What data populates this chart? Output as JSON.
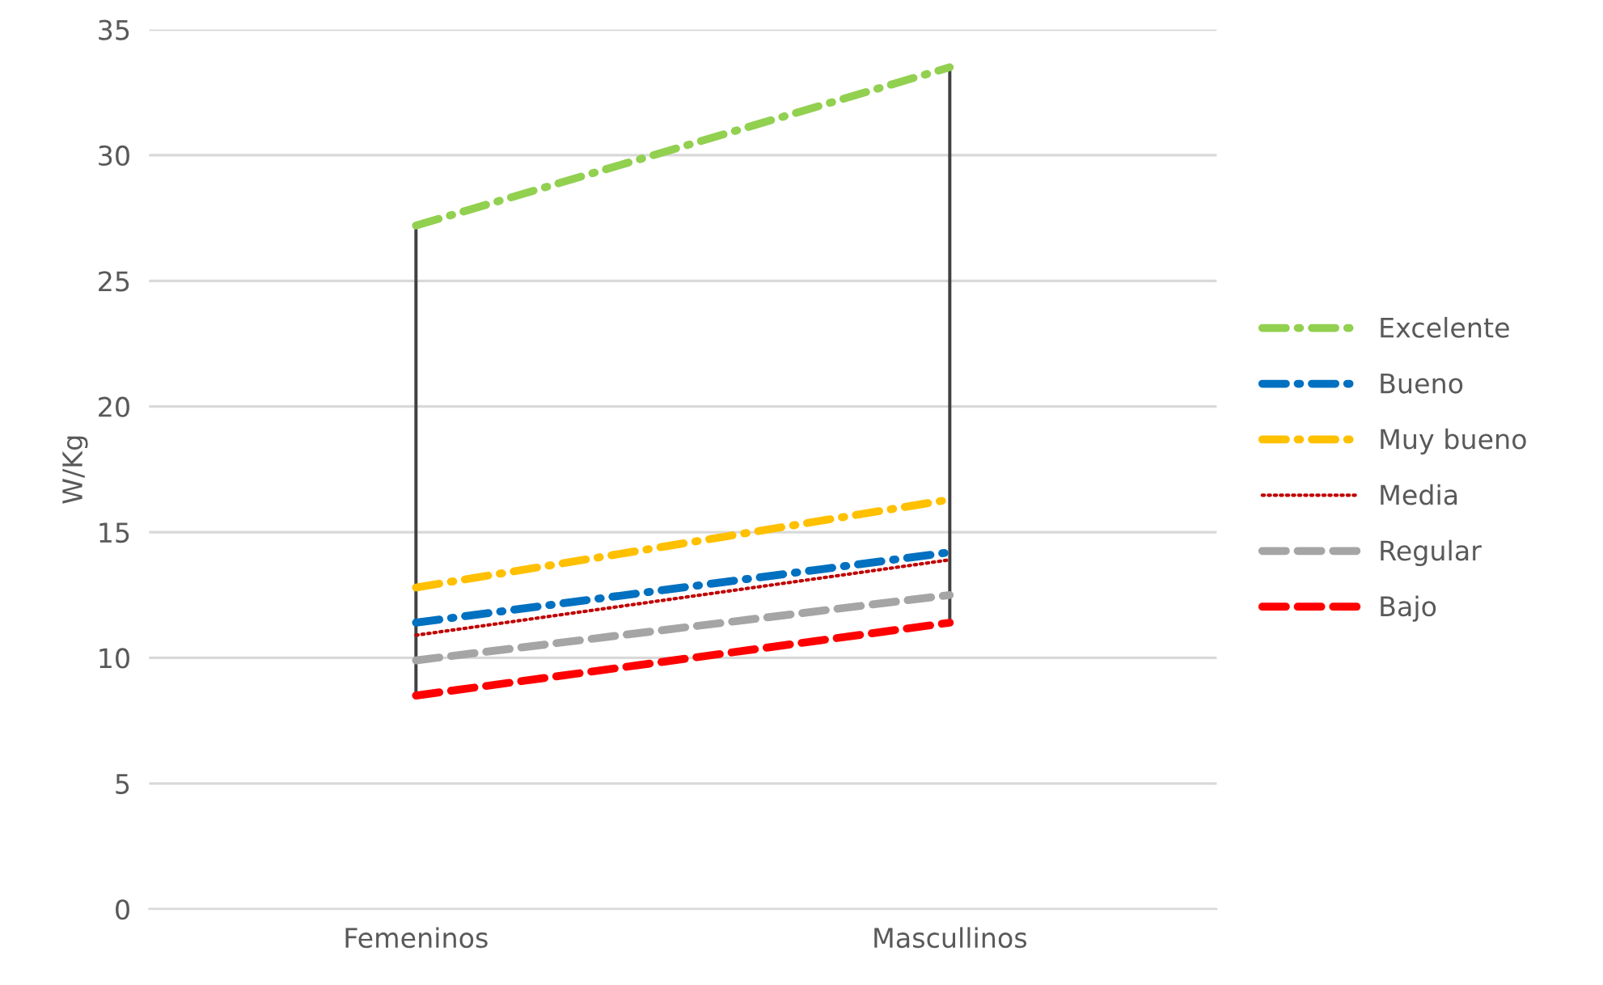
{
  "chart_data": {
    "type": "line",
    "ylabel": "W/Kg",
    "categories": [
      "Femeninos",
      "Mascullinos"
    ],
    "ylim": [
      0,
      35
    ],
    "yticks": [
      0,
      5,
      10,
      15,
      20,
      25,
      30,
      35
    ],
    "grid": "y",
    "legend": "right",
    "marker": "none",
    "series": [
      {
        "name": "Excelente",
        "color": "#92d050",
        "values": [
          27.2,
          33.5
        ],
        "line_style": "dashdot"
      },
      {
        "name": "Bueno",
        "color": "#0070c0",
        "values": [
          11.4,
          14.2
        ],
        "line_style": "dashdot"
      },
      {
        "name": "Muy bueno",
        "color": "#ffc000",
        "values": [
          12.8,
          16.3
        ],
        "line_style": "dashdot"
      },
      {
        "name": "Media",
        "color": "#c00000",
        "values": [
          10.9,
          13.9
        ],
        "line_style": "dotted"
      },
      {
        "name": "Regular",
        "color": "#a5a5a5",
        "values": [
          9.9,
          12.5
        ],
        "line_style": "dashed"
      },
      {
        "name": "Bajo",
        "color": "#ff0000",
        "values": [
          8.5,
          11.4
        ],
        "line_style": "dashed"
      },
      {
        "type": "bar",
        "color": "#404040",
        "base": [
          8.5,
          11.4
        ],
        "values": [
          18.7,
          22.1
        ]
      }
    ]
  }
}
